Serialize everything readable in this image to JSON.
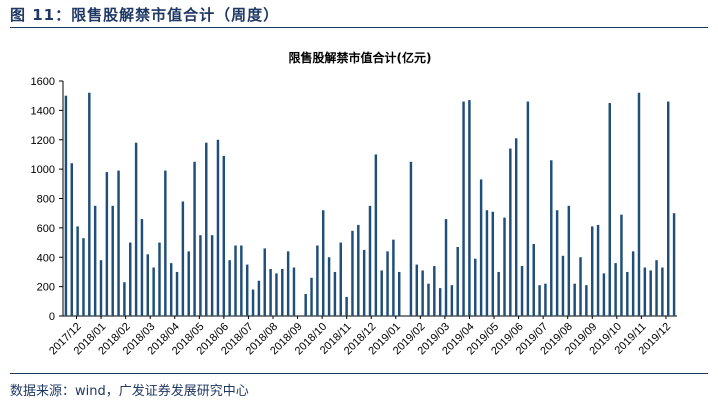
{
  "figure": {
    "title": "图 11：限售股解禁市值合计（周度）",
    "source": "数据来源：wind，广发证券发展研究中心"
  },
  "colors": {
    "bar": "#1f4e79",
    "axis": "#000000",
    "title": "#1f3864"
  },
  "chart_data": {
    "type": "bar",
    "title": "限售股解禁市值合计(亿元)",
    "xlabel": "",
    "ylabel": "",
    "ylim": [
      0,
      1600
    ],
    "yticks": [
      0,
      200,
      400,
      600,
      800,
      1000,
      1200,
      1400,
      1600
    ],
    "grid": false,
    "legend": "none",
    "x_tick_labels": [
      "2017/12",
      "2018/01",
      "2018/02",
      "2018/03",
      "2018/04",
      "2018/05",
      "2018/06",
      "2018/07",
      "2018/08",
      "2018/09",
      "2018/10",
      "2018/11",
      "2018/12",
      "2019/01",
      "2019/02",
      "2019/03",
      "2019/04",
      "2019/05",
      "2019/06",
      "2019/07",
      "2019/08",
      "2019/09",
      "2019/10",
      "2019/11",
      "2019/12"
    ],
    "values": [
      1500,
      1040,
      610,
      530,
      1520,
      750,
      380,
      980,
      750,
      990,
      230,
      500,
      1180,
      660,
      420,
      330,
      500,
      990,
      360,
      300,
      780,
      440,
      1050,
      550,
      1180,
      550,
      1200,
      1090,
      380,
      480,
      480,
      350,
      180,
      240,
      460,
      320,
      290,
      320,
      440,
      330,
      0,
      150,
      260,
      480,
      720,
      400,
      300,
      500,
      130,
      580,
      620,
      450,
      750,
      1100,
      310,
      440,
      520,
      300,
      0,
      1050,
      350,
      310,
      220,
      340,
      190,
      660,
      210,
      470,
      1460,
      1470,
      390,
      930,
      720,
      710,
      300,
      670,
      1140,
      1210,
      340,
      1460,
      490,
      210,
      220,
      1060,
      720,
      410,
      750,
      220,
      400,
      210,
      610,
      620,
      290,
      1450,
      360,
      690,
      300,
      440,
      1520,
      330,
      310,
      380,
      330,
      1460,
      700
    ]
  }
}
